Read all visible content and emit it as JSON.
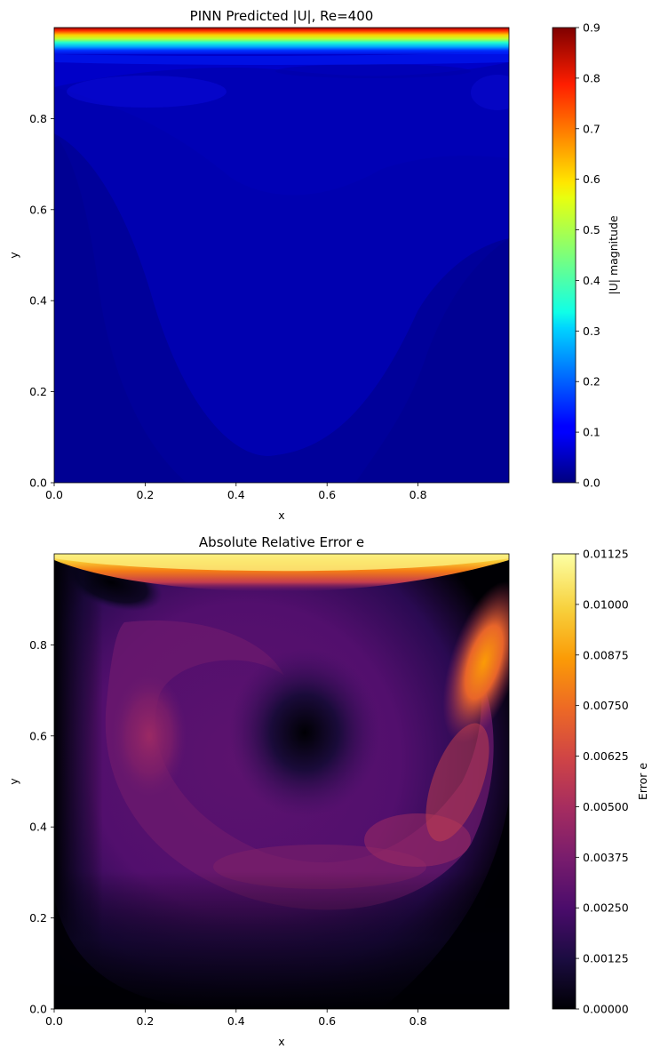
{
  "chart_data": [
    {
      "type": "heatmap",
      "title": "PINN Predicted |U|, Re=400",
      "xlabel": "x",
      "ylabel": "y",
      "xlim": [
        0.0,
        1.0
      ],
      "ylim": [
        0.0,
        1.0
      ],
      "xticks": [
        "0.0",
        "0.2",
        "0.4",
        "0.6",
        "0.8"
      ],
      "yticks": [
        "0.0",
        "0.2",
        "0.4",
        "0.6",
        "0.8"
      ],
      "colormap": "jet",
      "colorbar": {
        "label": "|U| magnitude",
        "range": [
          0.0,
          0.9
        ],
        "ticks": [
          "0.0",
          "0.1",
          "0.2",
          "0.3",
          "0.4",
          "0.5",
          "0.6",
          "0.7",
          "0.8",
          "0.9"
        ]
      },
      "features": {
        "lid_band_max": 0.9,
        "interior_level": 0.05,
        "low_region_level": 0.02
      }
    },
    {
      "type": "heatmap",
      "title": "Absolute Relative Error e",
      "xlabel": "x",
      "ylabel": "y",
      "xlim": [
        0.0,
        1.0
      ],
      "ylim": [
        0.0,
        1.0
      ],
      "xticks": [
        "0.0",
        "0.2",
        "0.4",
        "0.6",
        "0.8"
      ],
      "yticks": [
        "0.0",
        "0.2",
        "0.4",
        "0.6",
        "0.8"
      ],
      "colormap": "inferno",
      "colorbar": {
        "label": "Error e",
        "range": [
          0.0,
          0.01125
        ],
        "ticks": [
          "0.00000",
          "0.00125",
          "0.00250",
          "0.00375",
          "0.00500",
          "0.00625",
          "0.00750",
          "0.00875",
          "0.01000",
          "0.01125"
        ]
      },
      "features": {
        "vortex_center": [
          0.55,
          0.6
        ],
        "left_lobe_center": [
          0.2,
          0.6
        ],
        "right_lobe_center": [
          0.93,
          0.82
        ],
        "lid_max": 0.01125
      }
    }
  ]
}
